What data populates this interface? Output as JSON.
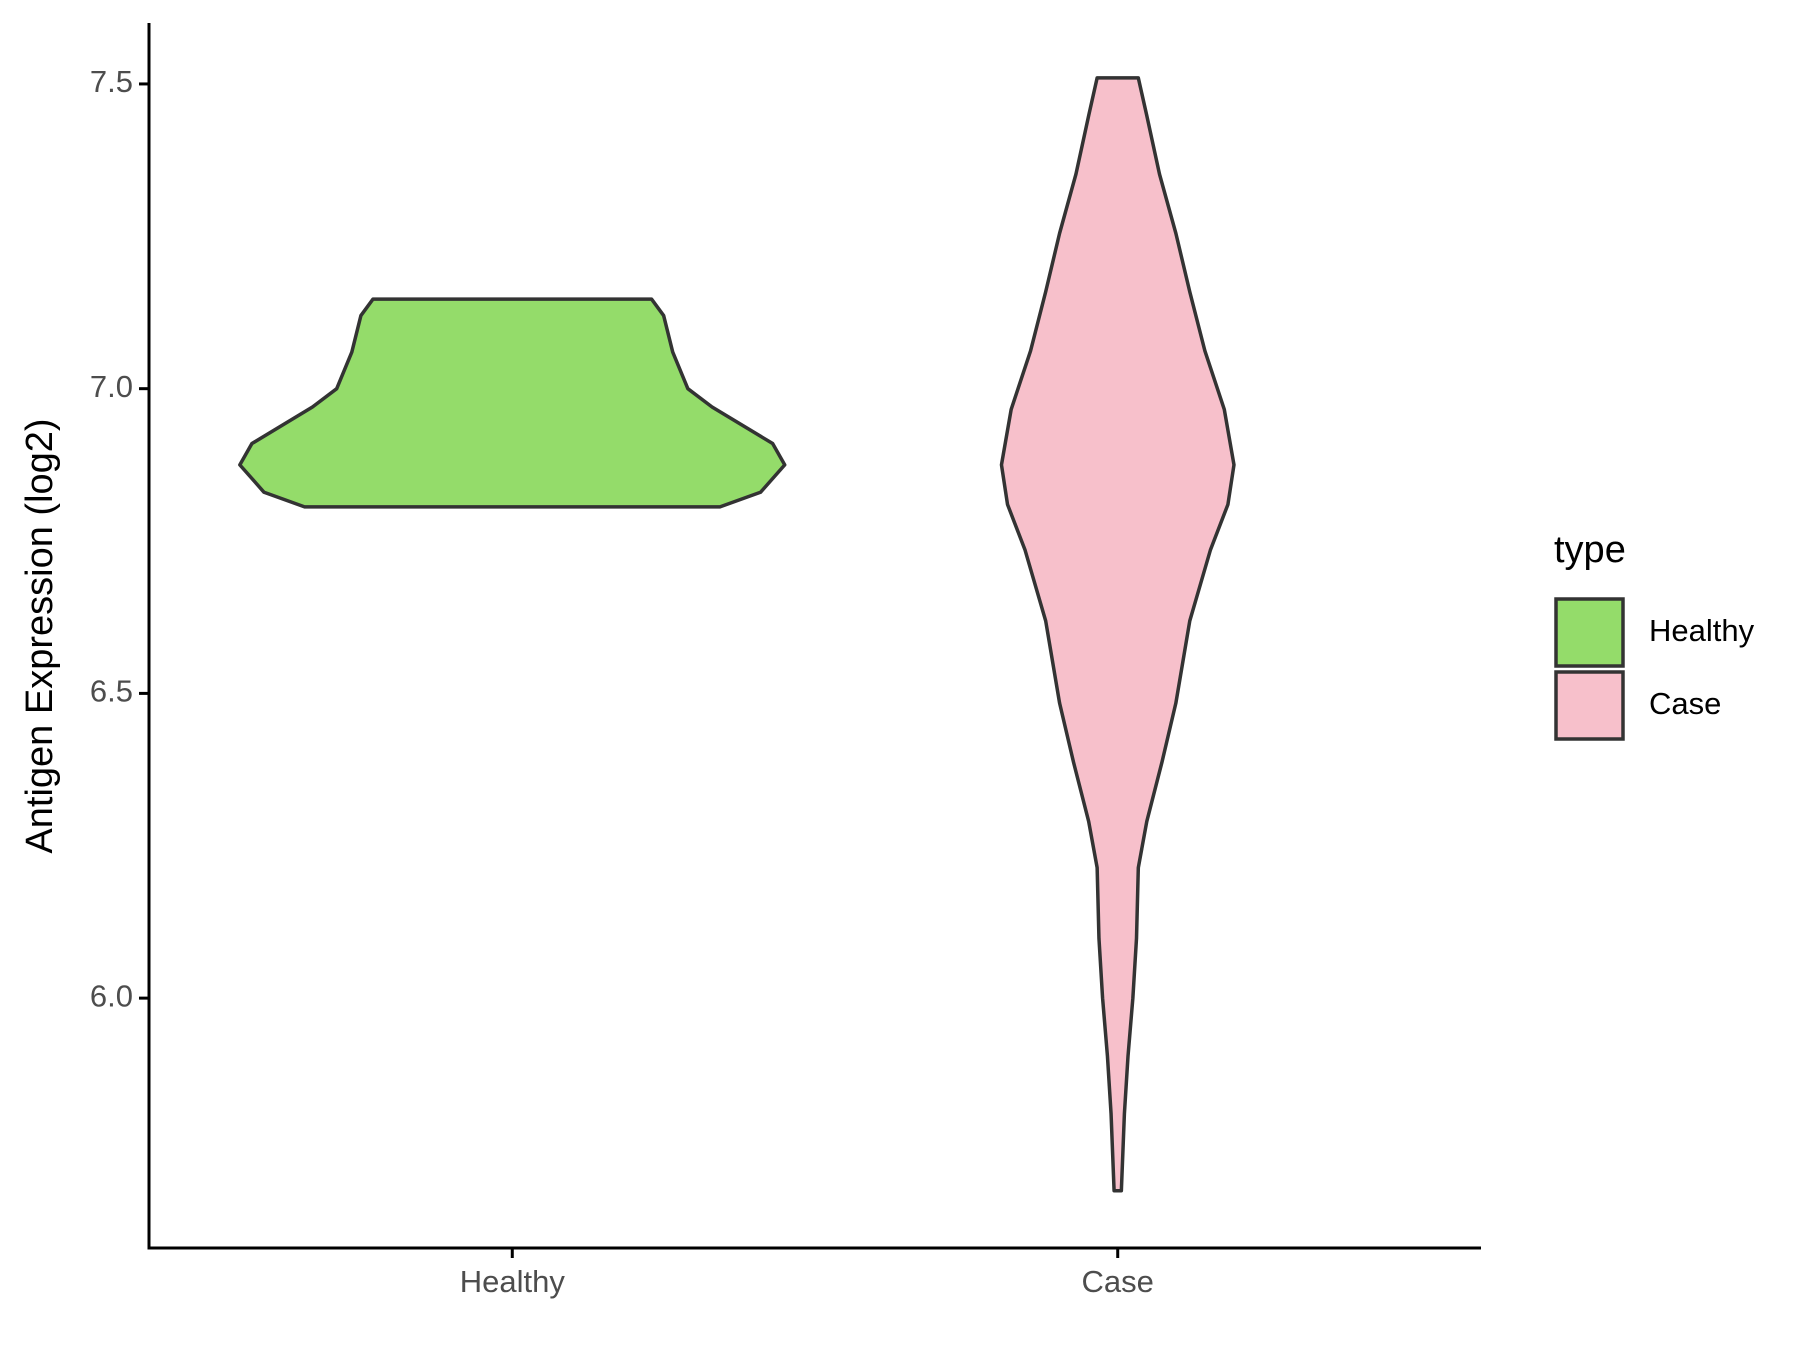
{
  "chart_data": {
    "type": "violin",
    "y_label": "Antigen Expression (log2)",
    "legend_title": "type",
    "categories": [
      "Healthy",
      "Case"
    ],
    "series": [
      {
        "name": "Healthy",
        "color": "#94dc6a",
        "y": [
          6.806,
          6.83,
          6.875,
          6.91,
          6.97,
          7.0,
          7.06,
          7.12,
          7.147
        ],
        "widths": [
          0.343,
          0.41,
          0.45,
          0.43,
          0.33,
          0.29,
          0.265,
          0.25,
          0.23
        ]
      },
      {
        "name": "Case",
        "color": "#f7c0cb",
        "y": [
          5.684,
          5.81,
          5.905,
          6.0,
          6.098,
          6.214,
          6.29,
          6.387,
          6.484,
          6.619,
          6.735,
          6.81,
          6.875,
          6.966,
          7.062,
          7.159,
          7.255,
          7.352,
          7.448,
          7.51
        ],
        "widths": [
          0.006,
          0.011,
          0.017,
          0.025,
          0.031,
          0.034,
          0.048,
          0.073,
          0.096,
          0.119,
          0.153,
          0.182,
          0.192,
          0.176,
          0.144,
          0.119,
          0.096,
          0.069,
          0.048,
          0.034
        ]
      }
    ],
    "ylim": [
      5.59,
      7.6
    ],
    "yticks": [
      {
        "value": 6,
        "label": "6.0"
      },
      6.5,
      {
        "value": 7,
        "label": "7.0"
      },
      7.5
    ],
    "legend": "right"
  }
}
